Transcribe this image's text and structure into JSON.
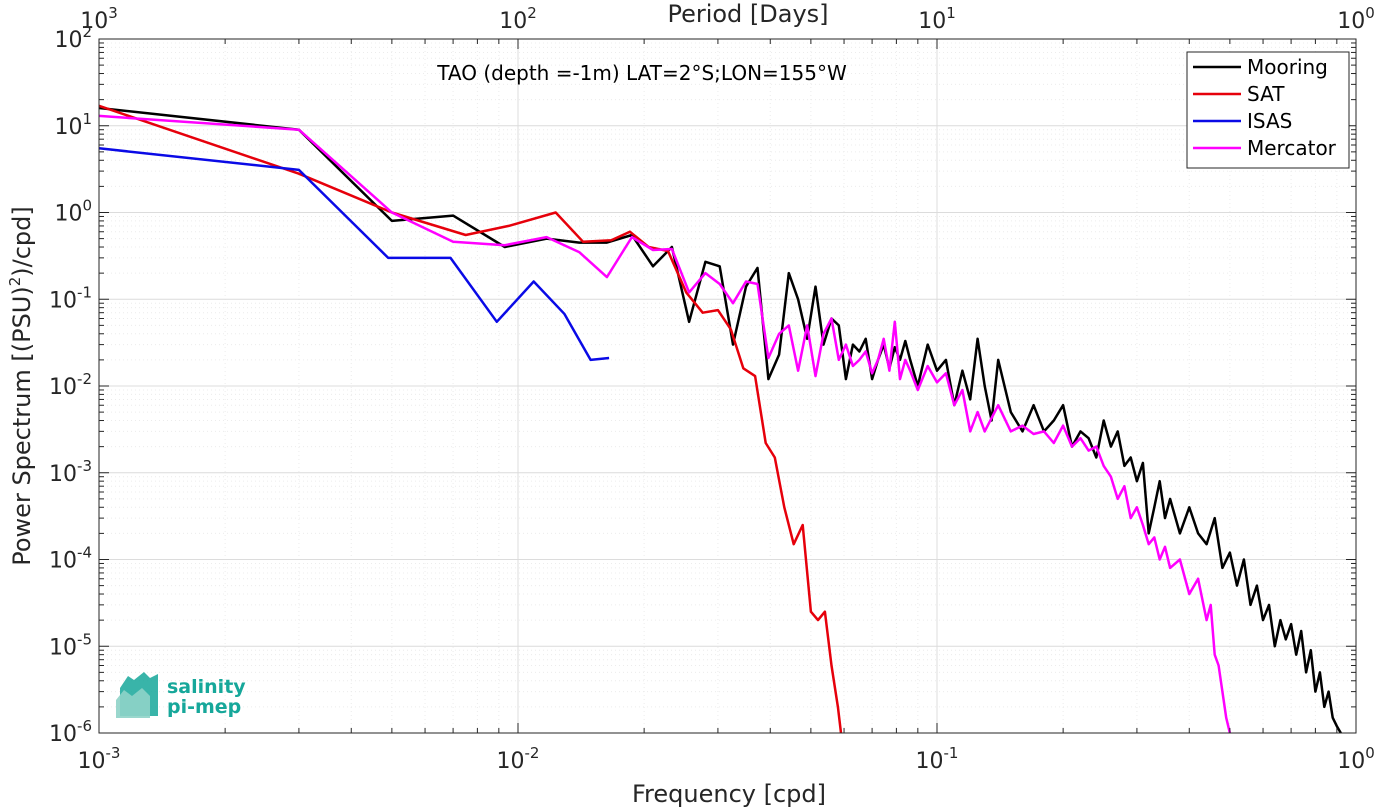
{
  "chart_data": {
    "type": "line",
    "title": "TAO (depth =-1m) LAT=2°S;LON=155°W",
    "xlabel": "Frequency [cpd]",
    "ylabel_pre": "Power Spectrum [(PSU)",
    "ylabel_sup": "2",
    "ylabel_post": ")/cpd]",
    "top_xlabel": "Period [Days]",
    "xscale": "log",
    "yscale": "log",
    "xlim": [
      0.001,
      1
    ],
    "ylim": [
      1e-06,
      100
    ],
    "grid": true,
    "legend_position": "top-right",
    "x_ticks": [
      0.001,
      0.01,
      0.1,
      1
    ],
    "x_tick_labels": [
      {
        "base": "10",
        "exp": "-3"
      },
      {
        "base": "10",
        "exp": "-2"
      },
      {
        "base": "10",
        "exp": "-1"
      },
      {
        "base": "10",
        "exp": "0"
      }
    ],
    "top_ticks": [
      {
        "freq": 0.001,
        "base": "10",
        "exp": "3"
      },
      {
        "freq": 0.01,
        "base": "10",
        "exp": "2"
      },
      {
        "freq": 0.1,
        "base": "10",
        "exp": "1"
      },
      {
        "freq": 1,
        "base": "10",
        "exp": "0"
      }
    ],
    "y_ticks": [
      1e-06,
      1e-05,
      0.0001,
      0.001,
      0.01,
      0.1,
      1,
      10,
      100
    ],
    "y_tick_labels": [
      {
        "base": "10",
        "exp": "-6"
      },
      {
        "base": "10",
        "exp": "-5"
      },
      {
        "base": "10",
        "exp": "-4"
      },
      {
        "base": "10",
        "exp": "-3"
      },
      {
        "base": "10",
        "exp": "-2"
      },
      {
        "base": "10",
        "exp": "-1"
      },
      {
        "base": "10",
        "exp": "0"
      },
      {
        "base": "10",
        "exp": "1"
      },
      {
        "base": "10",
        "exp": "2"
      }
    ],
    "series": [
      {
        "name": "Mooring",
        "color": "#000000",
        "points": [
          [
            0.001,
            16
          ],
          [
            0.003,
            9
          ],
          [
            0.005,
            0.8
          ],
          [
            0.007,
            0.92
          ],
          [
            0.0093,
            0.4
          ],
          [
            0.0117,
            0.5
          ],
          [
            0.014,
            0.45
          ],
          [
            0.0163,
            0.45
          ],
          [
            0.0187,
            0.55
          ],
          [
            0.021,
            0.24
          ],
          [
            0.0233,
            0.4
          ],
          [
            0.0256,
            0.055
          ],
          [
            0.028,
            0.27
          ],
          [
            0.0303,
            0.24
          ],
          [
            0.0326,
            0.03
          ],
          [
            0.035,
            0.14
          ],
          [
            0.0373,
            0.23
          ],
          [
            0.0396,
            0.012
          ],
          [
            0.042,
            0.023
          ],
          [
            0.0443,
            0.2
          ],
          [
            0.0466,
            0.1
          ],
          [
            0.049,
            0.035
          ],
          [
            0.0513,
            0.14
          ],
          [
            0.0536,
            0.03
          ],
          [
            0.056,
            0.06
          ],
          [
            0.0583,
            0.05
          ],
          [
            0.0606,
            0.012
          ],
          [
            0.063,
            0.03
          ],
          [
            0.0653,
            0.025
          ],
          [
            0.0676,
            0.035
          ],
          [
            0.07,
            0.012
          ],
          [
            0.0723,
            0.02
          ],
          [
            0.0746,
            0.03
          ],
          [
            0.077,
            0.016
          ],
          [
            0.0793,
            0.028
          ],
          [
            0.0816,
            0.02
          ],
          [
            0.084,
            0.033
          ],
          [
            0.0863,
            0.02
          ],
          [
            0.09,
            0.01
          ],
          [
            0.095,
            0.03
          ],
          [
            0.1,
            0.015
          ],
          [
            0.105,
            0.02
          ],
          [
            0.11,
            0.006
          ],
          [
            0.115,
            0.015
          ],
          [
            0.12,
            0.007
          ],
          [
            0.125,
            0.035
          ],
          [
            0.13,
            0.01
          ],
          [
            0.135,
            0.004
          ],
          [
            0.14,
            0.02
          ],
          [
            0.15,
            0.005
          ],
          [
            0.16,
            0.003
          ],
          [
            0.17,
            0.006
          ],
          [
            0.18,
            0.003
          ],
          [
            0.19,
            0.004
          ],
          [
            0.2,
            0.006
          ],
          [
            0.21,
            0.002
          ],
          [
            0.22,
            0.003
          ],
          [
            0.23,
            0.0025
          ],
          [
            0.24,
            0.0015
          ],
          [
            0.25,
            0.004
          ],
          [
            0.26,
            0.002
          ],
          [
            0.27,
            0.003
          ],
          [
            0.28,
            0.0012
          ],
          [
            0.29,
            0.0015
          ],
          [
            0.3,
            0.0008
          ],
          [
            0.31,
            0.0013
          ],
          [
            0.32,
            0.0002
          ],
          [
            0.33,
            0.0004
          ],
          [
            0.34,
            0.0008
          ],
          [
            0.35,
            0.0003
          ],
          [
            0.36,
            0.0005
          ],
          [
            0.38,
            0.0002
          ],
          [
            0.4,
            0.0004
          ],
          [
            0.42,
            0.0002
          ],
          [
            0.44,
            0.00015
          ],
          [
            0.46,
            0.0003
          ],
          [
            0.48,
            8e-05
          ],
          [
            0.5,
            0.00012
          ],
          [
            0.52,
            5e-05
          ],
          [
            0.54,
            0.0001
          ],
          [
            0.56,
            3e-05
          ],
          [
            0.58,
            5e-05
          ],
          [
            0.6,
            2e-05
          ],
          [
            0.62,
            3e-05
          ],
          [
            0.64,
            1e-05
          ],
          [
            0.66,
            2e-05
          ],
          [
            0.68,
            1.2e-05
          ],
          [
            0.7,
            1.8e-05
          ],
          [
            0.72,
            8e-06
          ],
          [
            0.74,
            1.5e-05
          ],
          [
            0.76,
            5e-06
          ],
          [
            0.78,
            9e-06
          ],
          [
            0.8,
            3e-06
          ],
          [
            0.82,
            5e-06
          ],
          [
            0.84,
            2e-06
          ],
          [
            0.86,
            3e-06
          ],
          [
            0.88,
            1.5e-06
          ],
          [
            0.9,
            1.2e-06
          ],
          [
            0.92,
            1e-06
          ]
        ]
      },
      {
        "name": "SAT",
        "color": "#e6000b",
        "points": [
          [
            0.001,
            17
          ],
          [
            0.003,
            2.8
          ],
          [
            0.005,
            1.0
          ],
          [
            0.0075,
            0.55
          ],
          [
            0.0095,
            0.7
          ],
          [
            0.0123,
            1.0
          ],
          [
            0.0143,
            0.46
          ],
          [
            0.0167,
            0.48
          ],
          [
            0.0185,
            0.6
          ],
          [
            0.0205,
            0.4
          ],
          [
            0.0228,
            0.36
          ],
          [
            0.0252,
            0.12
          ],
          [
            0.0276,
            0.07
          ],
          [
            0.03,
            0.075
          ],
          [
            0.0322,
            0.045
          ],
          [
            0.0345,
            0.016
          ],
          [
            0.0368,
            0.013
          ],
          [
            0.039,
            0.0022
          ],
          [
            0.041,
            0.0015
          ],
          [
            0.0432,
            0.0004
          ],
          [
            0.0455,
            0.00015
          ],
          [
            0.0478,
            0.00025
          ],
          [
            0.05,
            2.5e-05
          ],
          [
            0.052,
            2e-05
          ],
          [
            0.054,
            2.5e-05
          ],
          [
            0.056,
            6e-06
          ],
          [
            0.058,
            2e-06
          ],
          [
            0.059,
            1e-06
          ]
        ]
      },
      {
        "name": "ISAS",
        "color": "#0a0ae6",
        "points": [
          [
            0.001,
            5.5
          ],
          [
            0.003,
            3.1
          ],
          [
            0.0049,
            0.3
          ],
          [
            0.0069,
            0.3
          ],
          [
            0.0089,
            0.055
          ],
          [
            0.0109,
            0.16
          ],
          [
            0.0129,
            0.068
          ],
          [
            0.0149,
            0.02
          ],
          [
            0.0165,
            0.021
          ]
        ]
      },
      {
        "name": "Mercator",
        "color": "#ff00ff",
        "points": [
          [
            0.001,
            13
          ],
          [
            0.003,
            9
          ],
          [
            0.005,
            1.0
          ],
          [
            0.007,
            0.46
          ],
          [
            0.0093,
            0.42
          ],
          [
            0.0117,
            0.52
          ],
          [
            0.014,
            0.35
          ],
          [
            0.0163,
            0.18
          ],
          [
            0.0187,
            0.52
          ],
          [
            0.021,
            0.37
          ],
          [
            0.0233,
            0.38
          ],
          [
            0.0256,
            0.12
          ],
          [
            0.028,
            0.2
          ],
          [
            0.0303,
            0.15
          ],
          [
            0.0326,
            0.09
          ],
          [
            0.035,
            0.16
          ],
          [
            0.0373,
            0.15
          ],
          [
            0.0396,
            0.021
          ],
          [
            0.042,
            0.04
          ],
          [
            0.0443,
            0.05
          ],
          [
            0.0466,
            0.015
          ],
          [
            0.049,
            0.05
          ],
          [
            0.0513,
            0.013
          ],
          [
            0.0536,
            0.04
          ],
          [
            0.056,
            0.06
          ],
          [
            0.0583,
            0.02
          ],
          [
            0.0606,
            0.03
          ],
          [
            0.063,
            0.017
          ],
          [
            0.0653,
            0.02
          ],
          [
            0.0676,
            0.025
          ],
          [
            0.07,
            0.014
          ],
          [
            0.0723,
            0.02
          ],
          [
            0.0746,
            0.035
          ],
          [
            0.077,
            0.015
          ],
          [
            0.0793,
            0.055
          ],
          [
            0.0816,
            0.012
          ],
          [
            0.084,
            0.02
          ],
          [
            0.0863,
            0.015
          ],
          [
            0.09,
            0.009
          ],
          [
            0.095,
            0.017
          ],
          [
            0.1,
            0.011
          ],
          [
            0.105,
            0.014
          ],
          [
            0.11,
            0.006
          ],
          [
            0.115,
            0.009
          ],
          [
            0.12,
            0.003
          ],
          [
            0.125,
            0.005
          ],
          [
            0.13,
            0.003
          ],
          [
            0.14,
            0.006
          ],
          [
            0.15,
            0.003
          ],
          [
            0.16,
            0.0035
          ],
          [
            0.17,
            0.0028
          ],
          [
            0.18,
            0.003
          ],
          [
            0.19,
            0.0022
          ],
          [
            0.2,
            0.0035
          ],
          [
            0.21,
            0.002
          ],
          [
            0.22,
            0.0025
          ],
          [
            0.23,
            0.0018
          ],
          [
            0.24,
            0.002
          ],
          [
            0.25,
            0.0012
          ],
          [
            0.26,
            0.0009
          ],
          [
            0.27,
            0.0005
          ],
          [
            0.28,
            0.0007
          ],
          [
            0.29,
            0.0003
          ],
          [
            0.3,
            0.0004
          ],
          [
            0.31,
            0.00025
          ],
          [
            0.32,
            0.00015
          ],
          [
            0.33,
            0.00018
          ],
          [
            0.34,
            0.0001
          ],
          [
            0.35,
            0.00014
          ],
          [
            0.36,
            8e-05
          ],
          [
            0.38,
            0.0001
          ],
          [
            0.4,
            4e-05
          ],
          [
            0.42,
            6e-05
          ],
          [
            0.44,
            2e-05
          ],
          [
            0.45,
            3e-05
          ],
          [
            0.46,
            8e-06
          ],
          [
            0.47,
            6e-06
          ],
          [
            0.48,
            3e-06
          ],
          [
            0.49,
            1.5e-06
          ],
          [
            0.5,
            1e-06
          ]
        ]
      }
    ]
  },
  "logo": {
    "line1": "salinity",
    "line2": "pi-mep"
  }
}
